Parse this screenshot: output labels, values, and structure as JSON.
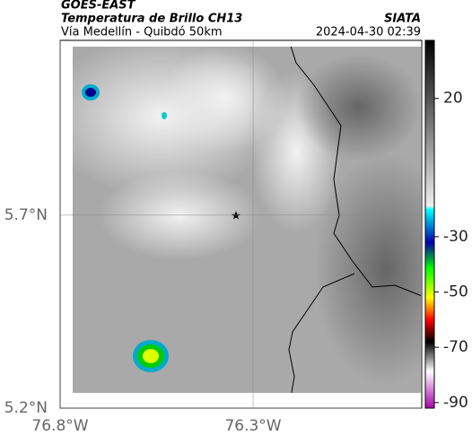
{
  "header": {
    "source": "GOES-EAST",
    "product": "Temperatura de Brillo CH13",
    "region": "Vía Medellín - Quibdó 50km",
    "agency": "SIATA",
    "timestamp": "2024-04-30 02:39"
  },
  "map": {
    "xlim": [
      -76.8,
      -75.863
    ],
    "ylim": [
      5.2,
      6.153
    ],
    "xticks": [
      {
        "value": -76.8,
        "label": "76.8°W"
      },
      {
        "value": -76.3,
        "label": "76.3°W"
      }
    ],
    "yticks": [
      {
        "value": 5.2,
        "label": "5.2°N"
      },
      {
        "value": 5.7,
        "label": "5.7°N"
      }
    ]
  },
  "colorbar": {
    "lim": [
      -92,
      41
    ],
    "ticks": [
      20,
      -30,
      -50,
      -70,
      -90
    ]
  }
}
